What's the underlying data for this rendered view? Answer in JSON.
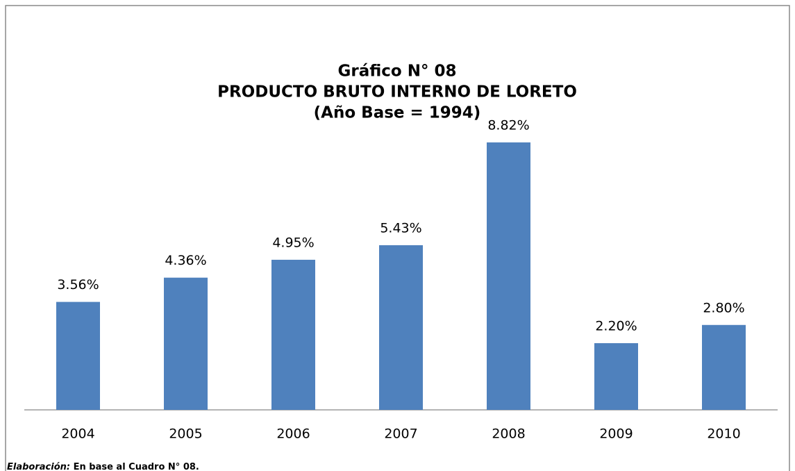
{
  "chart_data": {
    "type": "bar",
    "title": [
      "Gráfico N° 08",
      "PRODUCTO BRUTO INTERNO DE LORETO",
      "(Año Base = 1994)"
    ],
    "categories": [
      "2004",
      "2005",
      "2006",
      "2007",
      "2008",
      "2009",
      "2010"
    ],
    "values": [
      3.56,
      4.36,
      4.95,
      5.43,
      8.82,
      2.2,
      2.8
    ],
    "value_labels": [
      "3.56%",
      "4.36%",
      "4.95%",
      "5.43%",
      "8.82%",
      "2.20%",
      "2.80%"
    ],
    "color": "#4f81bd",
    "note": {
      "label": "Elaboración:",
      "text": "En base al Cuadro N° 08."
    }
  }
}
